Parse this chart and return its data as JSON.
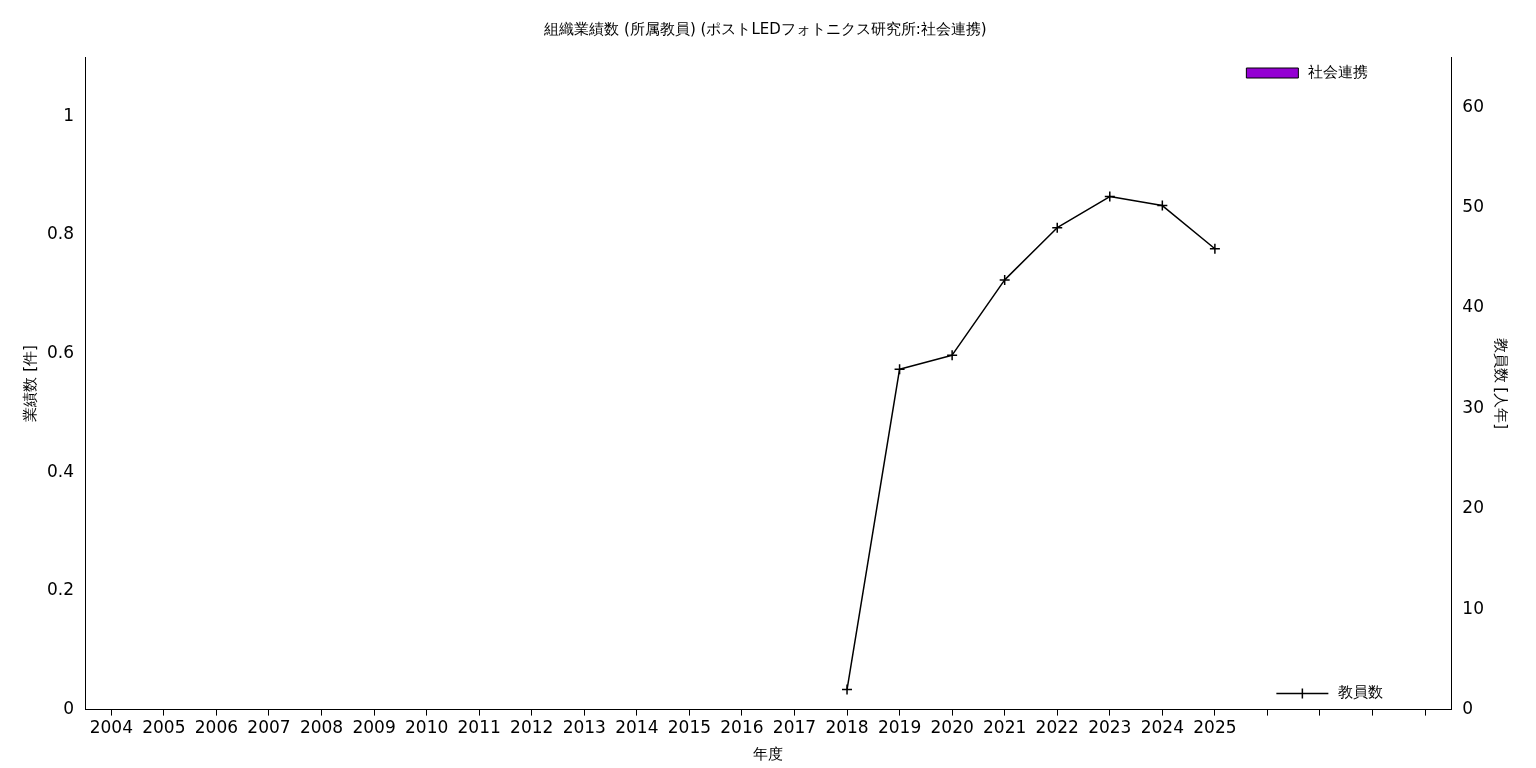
{
  "chart_data": {
    "type": "bar",
    "title": "組織業績数 (所属教員) (ポストLEDフォトニクス研究所:社会連携)",
    "xlabel": "年度",
    "ylabel": "業績数 [件]",
    "y2label": "教員数 [人年]",
    "categories": [
      "2004",
      "2005",
      "2006",
      "2007",
      "2008",
      "2009",
      "2010",
      "2011",
      "2012",
      "2013",
      "2014",
      "2015",
      "2016",
      "2017",
      "2018",
      "2019",
      "2020",
      "2021",
      "2022",
      "2023",
      "2024",
      "2025",
      null,
      null,
      null,
      null
    ],
    "series": [
      {
        "name": "社会連携",
        "color": "#9400d3",
        "values": [
          0,
          0,
          0,
          0,
          0,
          0,
          0,
          0,
          0,
          0,
          0,
          0,
          0,
          0,
          0,
          0,
          0,
          0,
          0,
          0,
          0,
          0,
          null,
          null,
          null,
          null
        ]
      },
      {
        "name": "教員数",
        "type": "line",
        "axis": "y2",
        "color": "#000000",
        "marker": "cross",
        "values": [
          null,
          null,
          null,
          null,
          null,
          null,
          null,
          null,
          null,
          null,
          null,
          null,
          null,
          null,
          2,
          33.9,
          35.3,
          42.8,
          48,
          51.1,
          50.2,
          45.9,
          null,
          null,
          null,
          null
        ]
      }
    ],
    "ylim": [
      0,
      1.1
    ],
    "yticks": [
      0,
      0.2,
      0.4,
      0.6,
      0.8,
      1
    ],
    "y2lim": [
      0,
      65
    ],
    "y2ticks": [
      0,
      10,
      20,
      30,
      40,
      50,
      60
    ],
    "grid": false,
    "legend": "right"
  }
}
